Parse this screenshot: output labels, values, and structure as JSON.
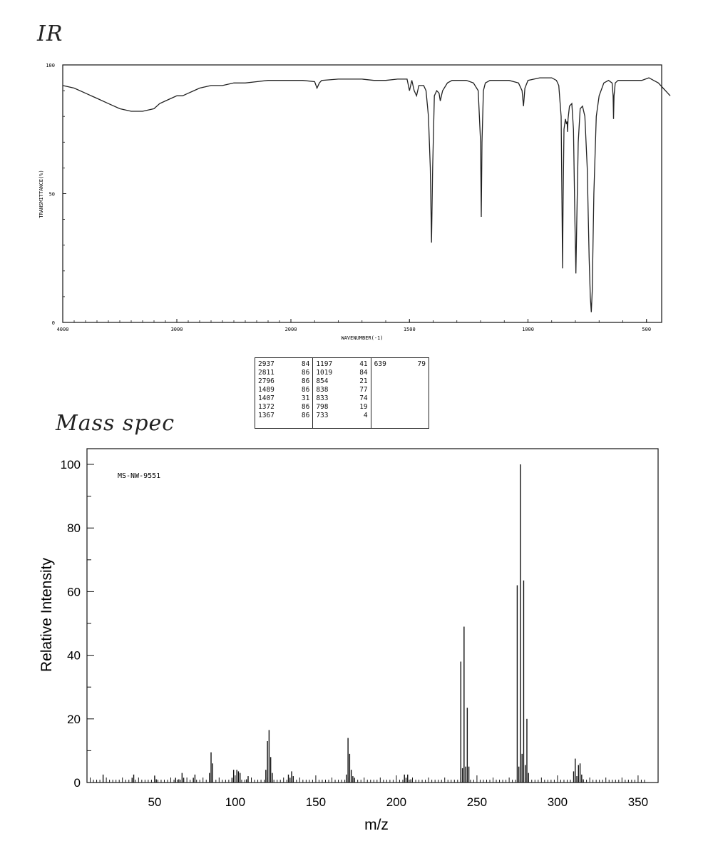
{
  "ir_annotation": "IR",
  "ms_annotation": "Mass spec",
  "peak_table": {
    "columns": [
      [
        [
          "2937",
          "84"
        ],
        [
          "2811",
          "86"
        ],
        [
          "2796",
          "86"
        ],
        [
          "1489",
          "86"
        ],
        [
          "1407",
          "31"
        ],
        [
          "1372",
          "86"
        ],
        [
          "1367",
          "86"
        ]
      ],
      [
        [
          "1197",
          "41"
        ],
        [
          "1019",
          "84"
        ],
        [
          "854",
          "21"
        ],
        [
          "838",
          "77"
        ],
        [
          "833",
          "74"
        ],
        [
          "798",
          "19"
        ],
        [
          "733",
          "4"
        ]
      ],
      [
        [
          "639",
          "79"
        ]
      ]
    ]
  },
  "chart_data": [
    {
      "type": "line",
      "title": "",
      "xlabel": "WAVENUMBER(-1)",
      "ylabel": "TRANSMITTANCE(%)",
      "xlim": [
        4000,
        400
      ],
      "ylim": [
        0,
        100
      ],
      "xticks": [
        "4000",
        "3000",
        "2000",
        "1500",
        "1000",
        "500"
      ],
      "yticks": [
        "100",
        "50",
        "0"
      ],
      "grid": false,
      "x": [
        4000,
        3900,
        3800,
        3700,
        3600,
        3500,
        3400,
        3300,
        3200,
        3150,
        3100,
        3050,
        3000,
        2950,
        2900,
        2850,
        2800,
        2700,
        2600,
        2500,
        2400,
        2300,
        2200,
        2100,
        2000,
        1950,
        1900,
        1890,
        1880,
        1870,
        1800,
        1700,
        1650,
        1600,
        1550,
        1510,
        1500,
        1490,
        1480,
        1470,
        1460,
        1440,
        1430,
        1420,
        1412,
        1407,
        1402,
        1395,
        1385,
        1375,
        1370,
        1365,
        1360,
        1340,
        1320,
        1300,
        1260,
        1230,
        1210,
        1200,
        1197,
        1194,
        1188,
        1180,
        1160,
        1120,
        1080,
        1040,
        1025,
        1019,
        1013,
        1000,
        950,
        900,
        880,
        870,
        860,
        856,
        854,
        852,
        848,
        842,
        838,
        835,
        833,
        831,
        825,
        815,
        808,
        802,
        798,
        794,
        788,
        780,
        770,
        760,
        750,
        742,
        737,
        733,
        729,
        722,
        712,
        700,
        680,
        660,
        645,
        641,
        639,
        637,
        632,
        620,
        600,
        560,
        520,
        490,
        470,
        450,
        430,
        400
      ],
      "y": [
        92,
        91,
        89,
        87,
        85,
        83,
        82,
        82,
        83,
        85,
        86,
        87,
        88,
        88,
        89,
        90,
        91,
        92,
        92,
        93,
        93,
        93.5,
        94,
        94,
        94,
        94,
        93.5,
        91,
        93,
        94,
        94.5,
        94.5,
        94,
        94,
        94.5,
        94.5,
        90,
        94,
        90,
        88,
        92,
        92,
        90,
        80,
        60,
        31,
        60,
        88,
        90,
        89,
        86,
        88,
        90,
        93,
        94,
        94,
        94,
        93,
        90,
        70,
        41,
        70,
        90,
        93,
        94,
        94,
        94,
        93,
        90,
        84,
        91,
        94,
        95,
        95,
        94,
        92,
        80,
        40,
        21,
        45,
        75,
        79,
        77,
        78,
        74,
        79,
        84,
        85,
        75,
        40,
        19,
        40,
        70,
        83,
        84,
        80,
        60,
        25,
        10,
        4,
        12,
        50,
        80,
        88,
        93,
        94,
        93,
        88,
        79,
        88,
        93,
        94,
        94,
        94,
        94,
        95,
        94,
        93,
        91,
        88
      ]
    },
    {
      "type": "bar",
      "title": "",
      "annotation": "MS-NW-9551",
      "xlabel": "m/z",
      "ylabel": "Relative Intensity",
      "xlim": [
        8,
        356
      ],
      "ylim": [
        0,
        105
      ],
      "xticks": [
        "50",
        "100",
        "150",
        "200",
        "250",
        "300",
        "350"
      ],
      "yticks": [
        "0",
        "20",
        "40",
        "60",
        "80",
        "100"
      ],
      "grid": false,
      "x": [
        18,
        36,
        37,
        50,
        51,
        63,
        65,
        67,
        68,
        74,
        75,
        84,
        85,
        86,
        98,
        99,
        101,
        102,
        103,
        107,
        108,
        119,
        120,
        121,
        122,
        123,
        133,
        134,
        135,
        136,
        169,
        170,
        171,
        172,
        173,
        174,
        205,
        206,
        207,
        209,
        240,
        241,
        242,
        243,
        244,
        245,
        275,
        276,
        277,
        278,
        279,
        280,
        281,
        282,
        310,
        311,
        312,
        313,
        314,
        315,
        316
      ],
      "y": [
        2.5,
        1.5,
        2.5,
        2,
        1,
        1.5,
        1,
        3,
        1.5,
        1.5,
        2.5,
        3,
        9.5,
        6,
        1.5,
        4,
        4,
        3.5,
        3,
        1,
        2,
        4,
        13,
        16.5,
        8,
        3,
        2.5,
        1.5,
        3.5,
        2,
        2.5,
        14,
        9,
        4,
        2,
        1.5,
        2.5,
        1.5,
        2.5,
        1,
        38,
        4.5,
        49,
        5,
        23.5,
        5,
        62,
        5,
        100,
        9,
        63.5,
        5.5,
        20,
        3,
        3.5,
        7.5,
        2,
        5.5,
        6,
        2.5,
        1
      ]
    }
  ]
}
